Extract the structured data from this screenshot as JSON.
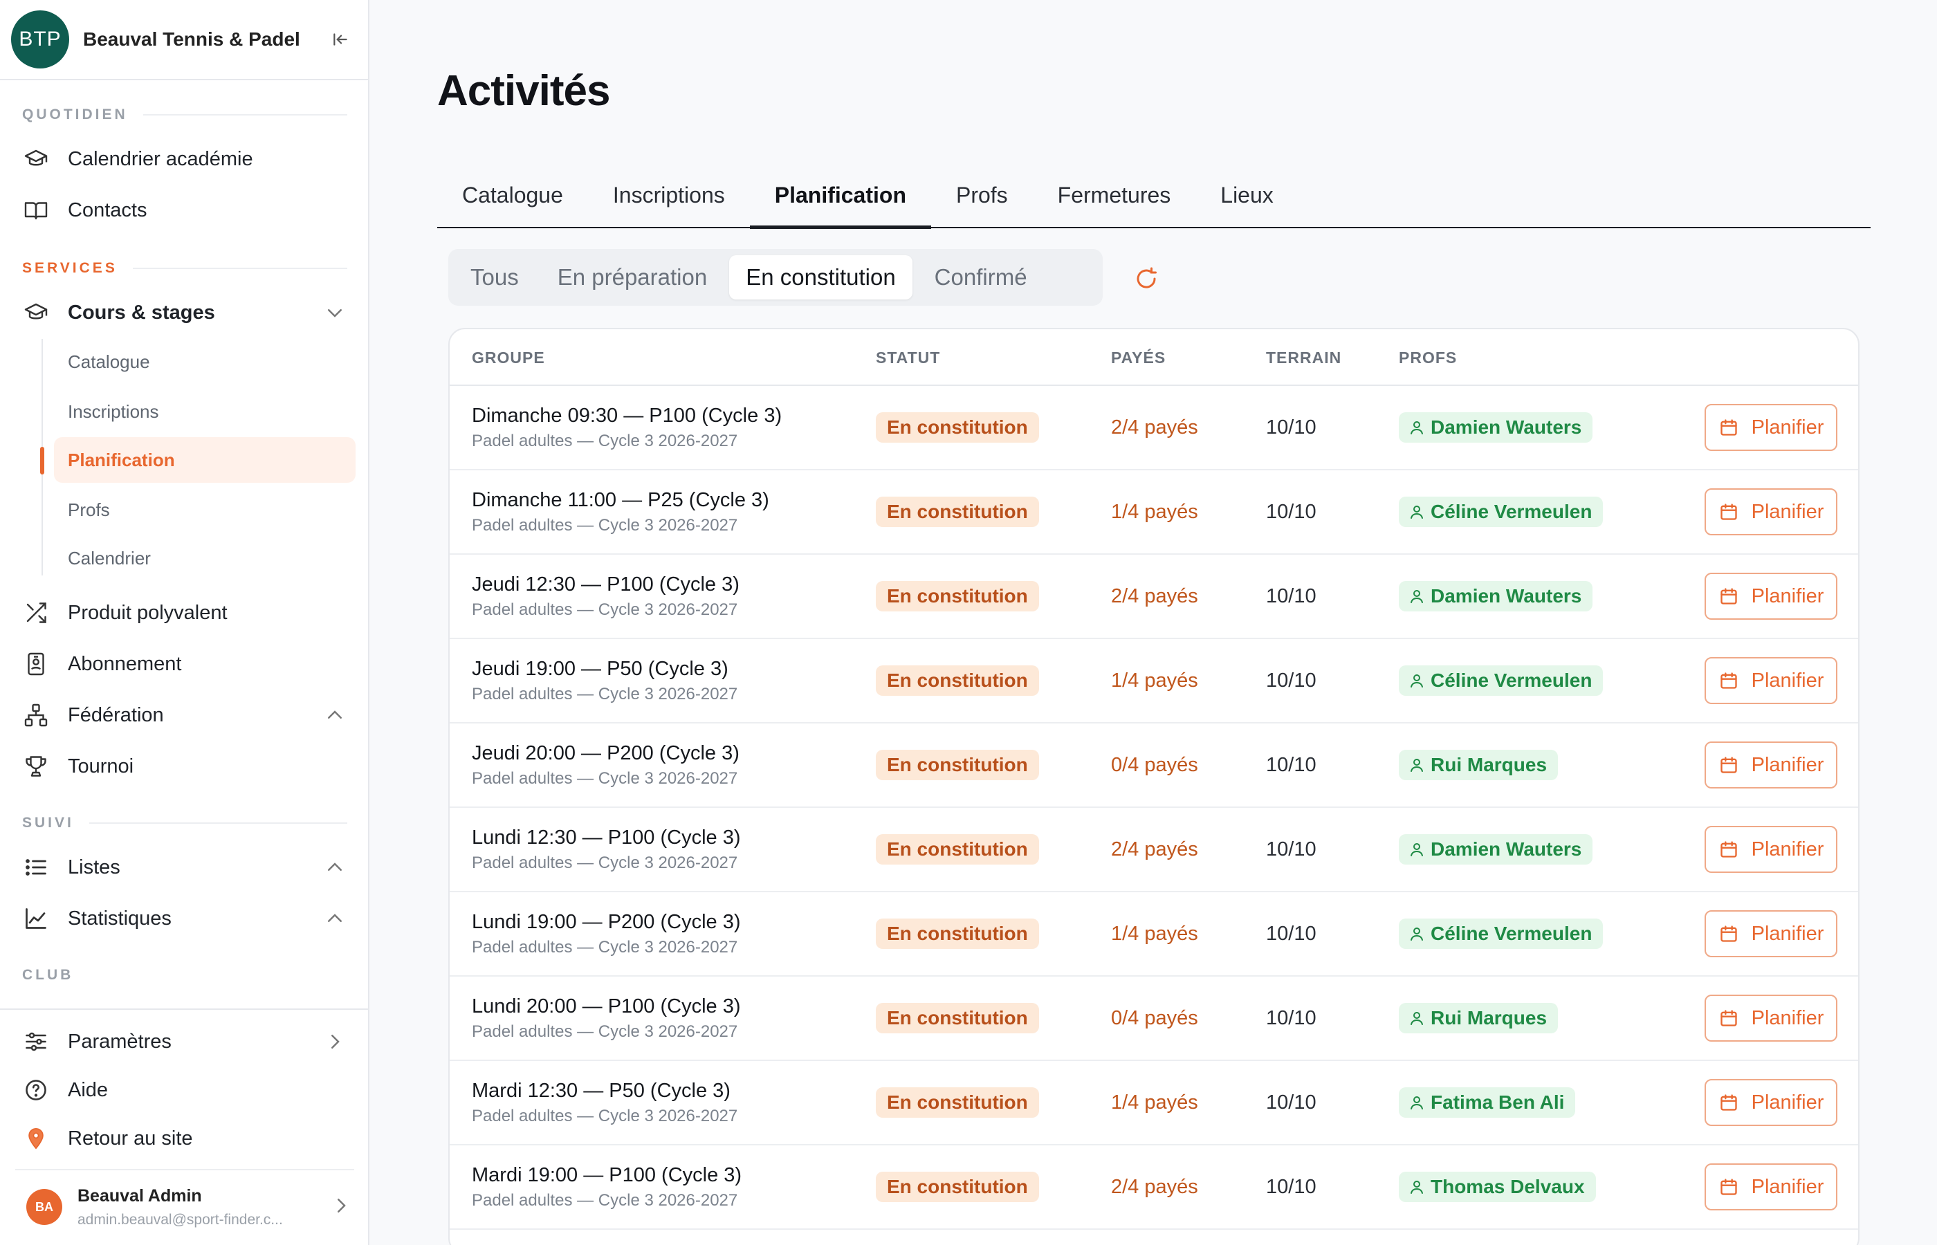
{
  "brand": {
    "logo_text": "BTP",
    "name": "Beauval Tennis & Padel"
  },
  "sidebar": {
    "sections": {
      "quotidien": "QUOTIDIEN",
      "services": "SERVICES",
      "suivi": "SUIVI",
      "club": "CLUB"
    },
    "items": {
      "calendrier_academie": "Calendrier académie",
      "contacts": "Contacts",
      "cours_stages": "Cours & stages",
      "produit_polyvalent": "Produit polyvalent",
      "abonnement": "Abonnement",
      "federation": "Fédération",
      "tournoi": "Tournoi",
      "listes": "Listes",
      "statistiques": "Statistiques",
      "parametres": "Paramètres",
      "aide": "Aide",
      "retour_site": "Retour au site"
    },
    "sub_items": [
      "Catalogue",
      "Inscriptions",
      "Planification",
      "Profs",
      "Calendrier"
    ],
    "user": {
      "initials": "BA",
      "name": "Beauval Admin",
      "email": "admin.beauval@sport-finder.c..."
    }
  },
  "main": {
    "title": "Activités",
    "tabs": [
      "Catalogue",
      "Inscriptions",
      "Planification",
      "Profs",
      "Fermetures",
      "Lieux"
    ],
    "active_tab": "Planification",
    "filters": [
      "Tous",
      "En préparation",
      "En constitution",
      "Confirmé"
    ],
    "active_filter": "En constitution",
    "table": {
      "headers": {
        "groupe": "GROUPE",
        "statut": "STATUT",
        "payes": "PAYÉS",
        "terrain": "TERRAIN",
        "profs": "PROFS"
      },
      "action_label": "Planifier",
      "rows": [
        {
          "title": "Dimanche 09:30 — P100 (Cycle 3)",
          "subtitle": "Padel adultes — Cycle 3 2026-2027",
          "status": "En constitution",
          "paid": "2/4 payés",
          "terrain": "10/10",
          "prof": "Damien Wauters"
        },
        {
          "title": "Dimanche 11:00 — P25 (Cycle 3)",
          "subtitle": "Padel adultes — Cycle 3 2026-2027",
          "status": "En constitution",
          "paid": "1/4 payés",
          "terrain": "10/10",
          "prof": "Céline Vermeulen"
        },
        {
          "title": "Jeudi 12:30 — P100 (Cycle 3)",
          "subtitle": "Padel adultes — Cycle 3 2026-2027",
          "status": "En constitution",
          "paid": "2/4 payés",
          "terrain": "10/10",
          "prof": "Damien Wauters"
        },
        {
          "title": "Jeudi 19:00 — P50 (Cycle 3)",
          "subtitle": "Padel adultes — Cycle 3 2026-2027",
          "status": "En constitution",
          "paid": "1/4 payés",
          "terrain": "10/10",
          "prof": "Céline Vermeulen"
        },
        {
          "title": "Jeudi 20:00 — P200 (Cycle 3)",
          "subtitle": "Padel adultes — Cycle 3 2026-2027",
          "status": "En constitution",
          "paid": "0/4 payés",
          "terrain": "10/10",
          "prof": "Rui Marques"
        },
        {
          "title": "Lundi 12:30 — P100 (Cycle 3)",
          "subtitle": "Padel adultes — Cycle 3 2026-2027",
          "status": "En constitution",
          "paid": "2/4 payés",
          "terrain": "10/10",
          "prof": "Damien Wauters"
        },
        {
          "title": "Lundi 19:00 — P200 (Cycle 3)",
          "subtitle": "Padel adultes — Cycle 3 2026-2027",
          "status": "En constitution",
          "paid": "1/4 payés",
          "terrain": "10/10",
          "prof": "Céline Vermeulen"
        },
        {
          "title": "Lundi 20:00 — P100 (Cycle 3)",
          "subtitle": "Padel adultes — Cycle 3 2026-2027",
          "status": "En constitution",
          "paid": "0/4 payés",
          "terrain": "10/10",
          "prof": "Rui Marques"
        },
        {
          "title": "Mardi 12:30 — P50 (Cycle 3)",
          "subtitle": "Padel adultes — Cycle 3 2026-2027",
          "status": "En constitution",
          "paid": "1/4 payés",
          "terrain": "10/10",
          "prof": "Fatima Ben Ali"
        },
        {
          "title": "Mardi 19:00 — P100 (Cycle 3)",
          "subtitle": "Padel adultes — Cycle 3 2026-2027",
          "status": "En constitution",
          "paid": "2/4 payés",
          "terrain": "10/10",
          "prof": "Thomas Delvaux"
        }
      ]
    }
  },
  "colors": {
    "accent": "#e8672f",
    "brand": "#0f5c50",
    "status_bg": "#fde9d8",
    "prof_bg": "#e5f7ea",
    "prof_text": "#1f8a45"
  },
  "icons": {
    "calendrier_academie": "graduation-cap-icon",
    "contacts": "book-open-icon",
    "cours_stages": "graduation-cap-icon",
    "produit_polyvalent": "shuffle-icon",
    "abonnement": "badge-id-icon",
    "federation": "network-icon",
    "tournoi": "trophy-icon",
    "listes": "list-icon",
    "statistiques": "line-chart-icon",
    "parametres": "sliders-icon",
    "aide": "help-circle-icon",
    "retour_site": "map-pin-icon"
  }
}
